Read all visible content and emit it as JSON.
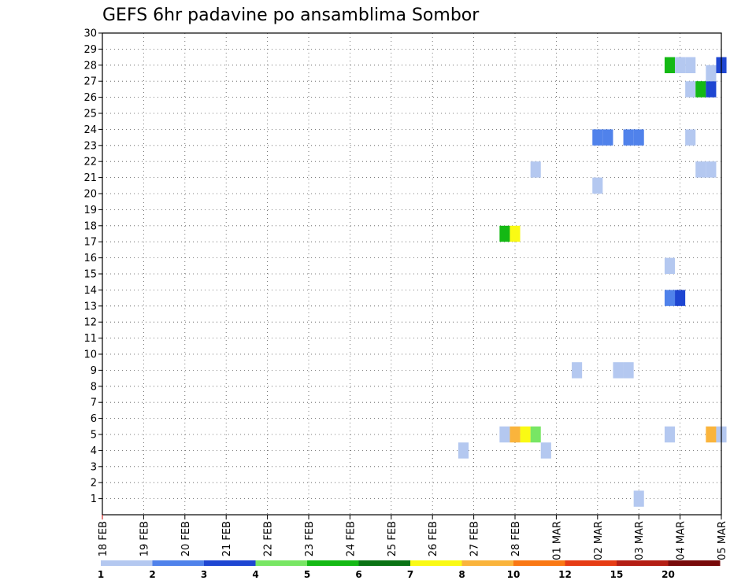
{
  "chart_data": {
    "type": "heatmap",
    "title": "GEFS 6hr padavine po ansamblima Sombor",
    "xlabel": "",
    "ylabel": "",
    "y_ticks": [
      1,
      2,
      3,
      4,
      5,
      6,
      7,
      8,
      9,
      10,
      11,
      12,
      13,
      14,
      15,
      16,
      17,
      18,
      19,
      20,
      21,
      22,
      23,
      24,
      25,
      26,
      27,
      28,
      29,
      30
    ],
    "ylim": [
      0,
      30
    ],
    "x_range_days": [
      0,
      15
    ],
    "x_ticks": [
      "18 FEB",
      "19 FEB",
      "20 FEB",
      "21 FEB",
      "22 FEB",
      "23 FEB",
      "24 FEB",
      "25 FEB",
      "26 FEB",
      "27 FEB",
      "28 FEB",
      "01 MAR",
      "02 MAR",
      "03 MAR",
      "04 MAR",
      "05 MAR"
    ],
    "grid": true,
    "legend": {
      "placement": "bottom",
      "labels": [
        "1",
        "2",
        "3",
        "4",
        "5",
        "6",
        "7",
        "8",
        "10",
        "12",
        "15",
        "20"
      ],
      "colors": [
        "#b4c8f0",
        "#5082eb",
        "#1e46d2",
        "#78e664",
        "#14b914",
        "#0a7314",
        "#fafa14",
        "#fab43c",
        "#fa7814",
        "#e63c14",
        "#b41e14",
        "#780a0a"
      ]
    },
    "cells": [
      {
        "member": 1,
        "day": 13.0,
        "value": 1
      },
      {
        "member": 4,
        "day": 8.75,
        "value": 1
      },
      {
        "member": 4,
        "day": 10.75,
        "value": 1
      },
      {
        "member": 5,
        "day": 9.75,
        "value": 1
      },
      {
        "member": 5,
        "day": 10.0,
        "value": 8
      },
      {
        "member": 5,
        "day": 10.25,
        "value": 7
      },
      {
        "member": 5,
        "day": 10.5,
        "value": 4
      },
      {
        "member": 5,
        "day": 13.75,
        "value": 1
      },
      {
        "member": 5,
        "day": 14.75,
        "value": 8
      },
      {
        "member": 5,
        "day": 15.0,
        "value": 1
      },
      {
        "member": 9,
        "day": 11.5,
        "value": 1
      },
      {
        "member": 9,
        "day": 12.5,
        "value": 1
      },
      {
        "member": 9,
        "day": 12.75,
        "value": 1
      },
      {
        "member": 13.5,
        "day": 13.75,
        "value": 2
      },
      {
        "member": 13.5,
        "day": 14.0,
        "value": 3
      },
      {
        "member": 15.5,
        "day": 13.75,
        "value": 1
      },
      {
        "member": 17.5,
        "day": 9.75,
        "value": 5
      },
      {
        "member": 17.5,
        "day": 10.0,
        "value": 7
      },
      {
        "member": 20.5,
        "day": 12.0,
        "value": 1
      },
      {
        "member": 21.5,
        "day": 10.5,
        "value": 1
      },
      {
        "member": 21.5,
        "day": 14.5,
        "value": 1
      },
      {
        "member": 21.5,
        "day": 14.75,
        "value": 1
      },
      {
        "member": 23.5,
        "day": 12.0,
        "value": 2
      },
      {
        "member": 23.5,
        "day": 12.25,
        "value": 2
      },
      {
        "member": 23.5,
        "day": 12.75,
        "value": 2
      },
      {
        "member": 23.5,
        "day": 13.0,
        "value": 2
      },
      {
        "member": 23.5,
        "day": 14.25,
        "value": 1
      },
      {
        "member": 26.5,
        "day": 14.25,
        "value": 1
      },
      {
        "member": 26.5,
        "day": 14.5,
        "value": 5
      },
      {
        "member": 26.5,
        "day": 14.75,
        "value": 3
      },
      {
        "member": 28,
        "day": 13.75,
        "value": 5
      },
      {
        "member": 28,
        "day": 14.0,
        "value": 1
      },
      {
        "member": 28,
        "day": 14.25,
        "value": 1
      },
      {
        "member": 27.5,
        "day": 14.75,
        "value": 1
      },
      {
        "member": 28,
        "day": 15.0,
        "value": 3
      }
    ]
  }
}
